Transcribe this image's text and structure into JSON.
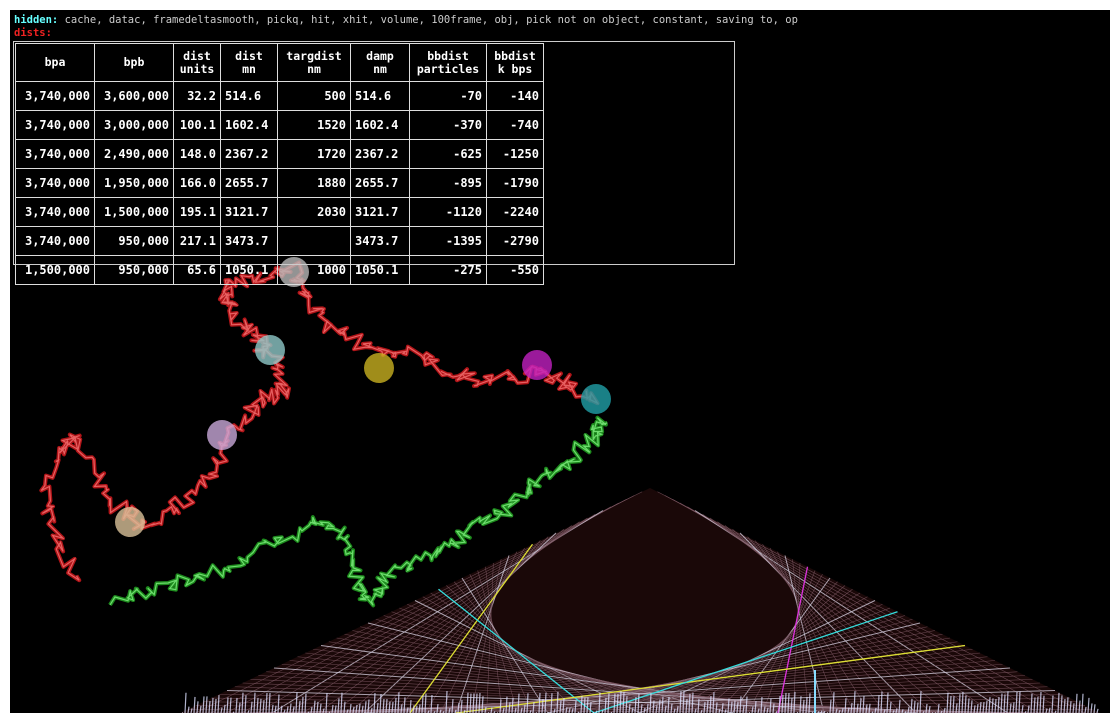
{
  "header": {
    "hidden_label": "hidden:",
    "hidden_text": "cache, datac, framedeltasmooth, pickq, hit, xhit, volume, 100frame, obj, pick not on object, constant, saving to, op",
    "section": "dists:"
  },
  "table": {
    "columns": [
      [
        "bpa"
      ],
      [
        "bpb"
      ],
      [
        "dist",
        "units"
      ],
      [
        "dist",
        "mn"
      ],
      [
        "targdist",
        "nm"
      ],
      [
        "damp",
        "nm"
      ],
      [
        "bbdist",
        "particles"
      ],
      [
        "bbdist",
        "k bps"
      ]
    ],
    "rows": [
      [
        "3,740,000",
        "3,600,000",
        "32.2",
        "514.6",
        "500",
        "514.6",
        "-70",
        "-140"
      ],
      [
        "3,740,000",
        "3,000,000",
        "100.1",
        "1602.4",
        "1520",
        "1602.4",
        "-370",
        "-740"
      ],
      [
        "3,740,000",
        "2,490,000",
        "148.0",
        "2367.2",
        "1720",
        "2367.2",
        "-625",
        "-1250"
      ],
      [
        "3,740,000",
        "1,950,000",
        "166.0",
        "2655.7",
        "1880",
        "2655.7",
        "-895",
        "-1790"
      ],
      [
        "3,740,000",
        "1,500,000",
        "195.1",
        "3121.7",
        "2030",
        "3121.7",
        "-1120",
        "-2240"
      ],
      [
        "3,740,000",
        "950,000",
        "217.1",
        "3473.7",
        null,
        "3473.7",
        "-1395",
        "-2790"
      ],
      [
        "1,500,000",
        "950,000",
        "65.6",
        "1050.1",
        "1000",
        "1050.1",
        "-275",
        "-550"
      ]
    ]
  }
}
